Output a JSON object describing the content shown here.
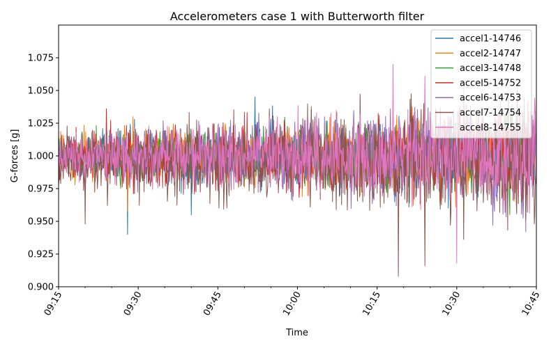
{
  "chart_data": {
    "type": "line",
    "title": "Accelerometers case 1 with Butterworth filter",
    "xlabel": "Time",
    "ylabel": "G-forces [g]",
    "x_range": [
      "09:15",
      "10:45"
    ],
    "x_ticks": [
      "09:15",
      "09:30",
      "09:45",
      "10:00",
      "10:15",
      "10:30",
      "10:45"
    ],
    "ylim": [
      0.9,
      1.1
    ],
    "y_ticks": [
      "0.900",
      "0.925",
      "0.950",
      "0.975",
      "1.000",
      "1.025",
      "1.050",
      "1.075"
    ],
    "grid": false,
    "legend_position": "top-right",
    "series": [
      {
        "name": "accel1-14746",
        "color": "#1f77b4",
        "mean": 1.0,
        "amp_start": 0.012,
        "amp_end": 0.022,
        "extremes": [
          {
            "t": "09:28",
            "v": 0.94
          },
          {
            "t": "09:40",
            "v": 0.955
          },
          {
            "t": "09:52",
            "v": 1.045
          }
        ]
      },
      {
        "name": "accel2-14747",
        "color": "#ff7f0e",
        "mean": 1.0,
        "amp_start": 0.011,
        "amp_end": 0.02,
        "extremes": [
          {
            "t": "09:28",
            "v": 0.958
          },
          {
            "t": "09:29",
            "v": 1.03
          }
        ]
      },
      {
        "name": "accel3-14748",
        "color": "#2ca02c",
        "mean": 1.0,
        "amp_start": 0.01,
        "amp_end": 0.019,
        "extremes": [
          {
            "t": "10:40",
            "v": 0.955
          }
        ]
      },
      {
        "name": "accel5-14752",
        "color": "#d62728",
        "mean": 1.0,
        "amp_start": 0.012,
        "amp_end": 0.02,
        "extremes": [
          {
            "t": "09:24",
            "v": 1.036
          }
        ]
      },
      {
        "name": "accel6-14753",
        "color": "#9467bd",
        "mean": 1.0,
        "amp_start": 0.011,
        "amp_end": 0.028,
        "extremes": [
          {
            "t": "10:43",
            "v": 0.942
          }
        ]
      },
      {
        "name": "accel7-14754",
        "color": "#8c564b",
        "mean": 0.995,
        "amp_start": 0.014,
        "amp_end": 0.03,
        "extremes": [
          {
            "t": "10:19",
            "v": 0.908
          },
          {
            "t": "10:24",
            "v": 0.916
          },
          {
            "t": "09:20",
            "v": 0.948
          }
        ]
      },
      {
        "name": "accel8-14755",
        "color": "#e377c2",
        "mean": 1.0,
        "amp_start": 0.01,
        "amp_end": 0.026,
        "extremes": [
          {
            "t": "10:18",
            "v": 1.07
          },
          {
            "t": "10:30",
            "v": 0.918
          },
          {
            "t": "10:24",
            "v": 1.061
          }
        ]
      }
    ]
  }
}
